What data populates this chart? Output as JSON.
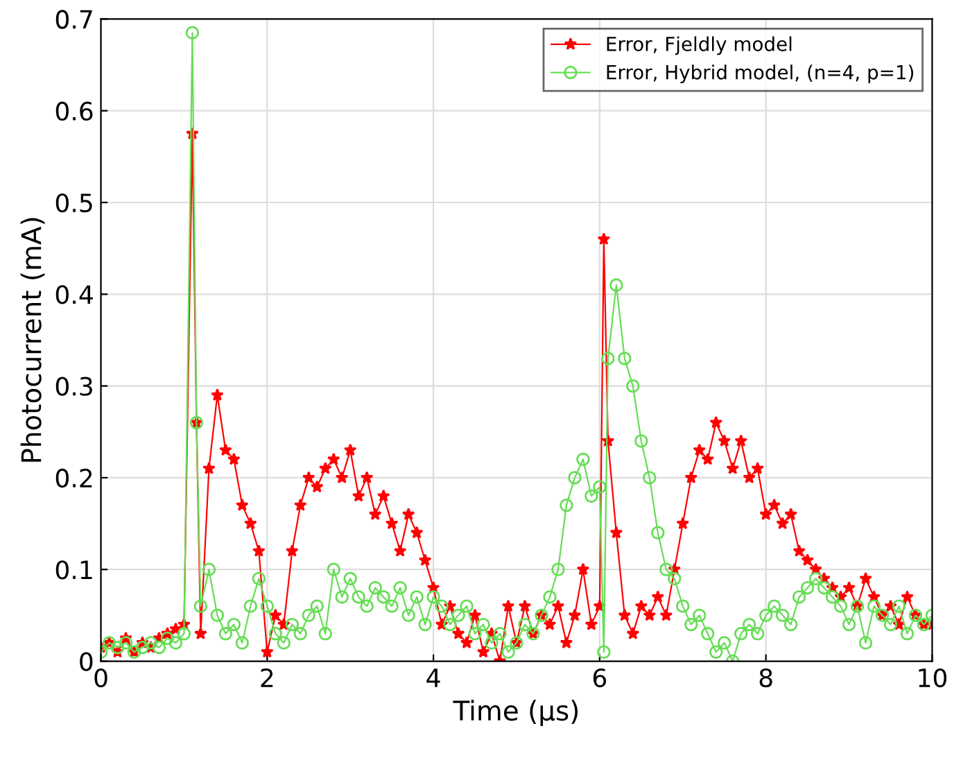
{
  "chart_data": {
    "type": "line",
    "xlabel": "Time (µs)",
    "ylabel": "Photocurrent (mA)",
    "xlim": [
      0,
      10
    ],
    "ylim": [
      0,
      0.7
    ],
    "xticks": [
      0,
      2,
      4,
      6,
      8,
      10
    ],
    "yticks": [
      0,
      0.1,
      0.2,
      0.3,
      0.4,
      0.5,
      0.6,
      0.7
    ],
    "grid": true,
    "legend": "top right",
    "series": [
      {
        "name": "Error, Fjeldly model",
        "color": "#ff0000",
        "marker": "star",
        "x": [
          0,
          0.1,
          0.2,
          0.3,
          0.4,
          0.5,
          0.6,
          0.7,
          0.8,
          0.9,
          1.0,
          1.1,
          1.15,
          1.2,
          1.3,
          1.4,
          1.5,
          1.6,
          1.7,
          1.8,
          1.9,
          2.0,
          2.1,
          2.2,
          2.3,
          2.4,
          2.5,
          2.6,
          2.7,
          2.8,
          2.9,
          3.0,
          3.1,
          3.2,
          3.3,
          3.4,
          3.5,
          3.6,
          3.7,
          3.8,
          3.9,
          4.0,
          4.1,
          4.2,
          4.3,
          4.4,
          4.5,
          4.6,
          4.7,
          4.8,
          4.9,
          5.0,
          5.1,
          5.2,
          5.3,
          5.4,
          5.5,
          5.6,
          5.7,
          5.8,
          5.9,
          6.0,
          6.05,
          6.1,
          6.2,
          6.3,
          6.4,
          6.5,
          6.6,
          6.7,
          6.8,
          6.9,
          7.0,
          7.1,
          7.2,
          7.3,
          7.4,
          7.5,
          7.6,
          7.7,
          7.8,
          7.9,
          8.0,
          8.1,
          8.2,
          8.3,
          8.4,
          8.5,
          8.6,
          8.7,
          8.8,
          8.9,
          9.0,
          9.1,
          9.2,
          9.3,
          9.4,
          9.5,
          9.6,
          9.7,
          9.8,
          9.9,
          10.0
        ],
        "values": [
          0.015,
          0.02,
          0.01,
          0.025,
          0.01,
          0.02,
          0.015,
          0.025,
          0.03,
          0.035,
          0.04,
          0.575,
          0.26,
          0.03,
          0.21,
          0.29,
          0.23,
          0.22,
          0.17,
          0.15,
          0.12,
          0.01,
          0.05,
          0.04,
          0.12,
          0.17,
          0.2,
          0.19,
          0.21,
          0.22,
          0.2,
          0.23,
          0.18,
          0.2,
          0.16,
          0.18,
          0.15,
          0.12,
          0.16,
          0.14,
          0.11,
          0.08,
          0.04,
          0.06,
          0.03,
          0.02,
          0.05,
          0.01,
          0.03,
          0.0,
          0.06,
          0.02,
          0.06,
          0.03,
          0.05,
          0.04,
          0.06,
          0.02,
          0.05,
          0.1,
          0.04,
          0.06,
          0.46,
          0.24,
          0.14,
          0.05,
          0.03,
          0.06,
          0.05,
          0.07,
          0.05,
          0.1,
          0.15,
          0.2,
          0.23,
          0.22,
          0.26,
          0.24,
          0.21,
          0.24,
          0.2,
          0.21,
          0.16,
          0.17,
          0.15,
          0.16,
          0.12,
          0.11,
          0.1,
          0.09,
          0.08,
          0.07,
          0.08,
          0.06,
          0.09,
          0.07,
          0.05,
          0.06,
          0.04,
          0.07,
          0.05,
          0.04,
          0.04
        ]
      },
      {
        "name": "Error, Hybrid model, (n=4, p=1)",
        "color": "#66dd55",
        "marker": "circle",
        "x": [
          0,
          0.1,
          0.2,
          0.3,
          0.4,
          0.5,
          0.6,
          0.7,
          0.8,
          0.9,
          1.0,
          1.1,
          1.15,
          1.2,
          1.3,
          1.4,
          1.5,
          1.6,
          1.7,
          1.8,
          1.9,
          2.0,
          2.1,
          2.2,
          2.3,
          2.4,
          2.5,
          2.6,
          2.7,
          2.8,
          2.9,
          3.0,
          3.1,
          3.2,
          3.3,
          3.4,
          3.5,
          3.6,
          3.7,
          3.8,
          3.9,
          4.0,
          4.1,
          4.2,
          4.3,
          4.4,
          4.5,
          4.6,
          4.7,
          4.8,
          4.9,
          5.0,
          5.1,
          5.2,
          5.3,
          5.4,
          5.5,
          5.6,
          5.7,
          5.8,
          5.9,
          6.0,
          6.05,
          6.1,
          6.2,
          6.3,
          6.4,
          6.5,
          6.6,
          6.7,
          6.8,
          6.9,
          7.0,
          7.1,
          7.2,
          7.3,
          7.4,
          7.5,
          7.6,
          7.7,
          7.8,
          7.9,
          8.0,
          8.1,
          8.2,
          8.3,
          8.4,
          8.5,
          8.6,
          8.7,
          8.8,
          8.9,
          9.0,
          9.1,
          9.2,
          9.3,
          9.4,
          9.5,
          9.6,
          9.7,
          9.8,
          9.9,
          10.0
        ],
        "values": [
          0.01,
          0.02,
          0.015,
          0.02,
          0.01,
          0.015,
          0.02,
          0.015,
          0.025,
          0.02,
          0.03,
          0.685,
          0.26,
          0.06,
          0.1,
          0.05,
          0.03,
          0.04,
          0.02,
          0.06,
          0.09,
          0.06,
          0.03,
          0.02,
          0.04,
          0.03,
          0.05,
          0.06,
          0.03,
          0.1,
          0.07,
          0.09,
          0.07,
          0.06,
          0.08,
          0.07,
          0.06,
          0.08,
          0.05,
          0.07,
          0.04,
          0.07,
          0.06,
          0.04,
          0.05,
          0.06,
          0.03,
          0.04,
          0.02,
          0.03,
          0.01,
          0.02,
          0.04,
          0.03,
          0.05,
          0.07,
          0.1,
          0.17,
          0.2,
          0.22,
          0.18,
          0.19,
          0.01,
          0.33,
          0.41,
          0.33,
          0.3,
          0.24,
          0.2,
          0.14,
          0.1,
          0.09,
          0.06,
          0.04,
          0.05,
          0.03,
          0.01,
          0.02,
          0.0,
          0.03,
          0.04,
          0.03,
          0.05,
          0.06,
          0.05,
          0.04,
          0.07,
          0.08,
          0.09,
          0.08,
          0.07,
          0.06,
          0.04,
          0.06,
          0.02,
          0.06,
          0.05,
          0.04,
          0.06,
          0.03,
          0.05,
          0.04,
          0.05
        ]
      }
    ]
  }
}
